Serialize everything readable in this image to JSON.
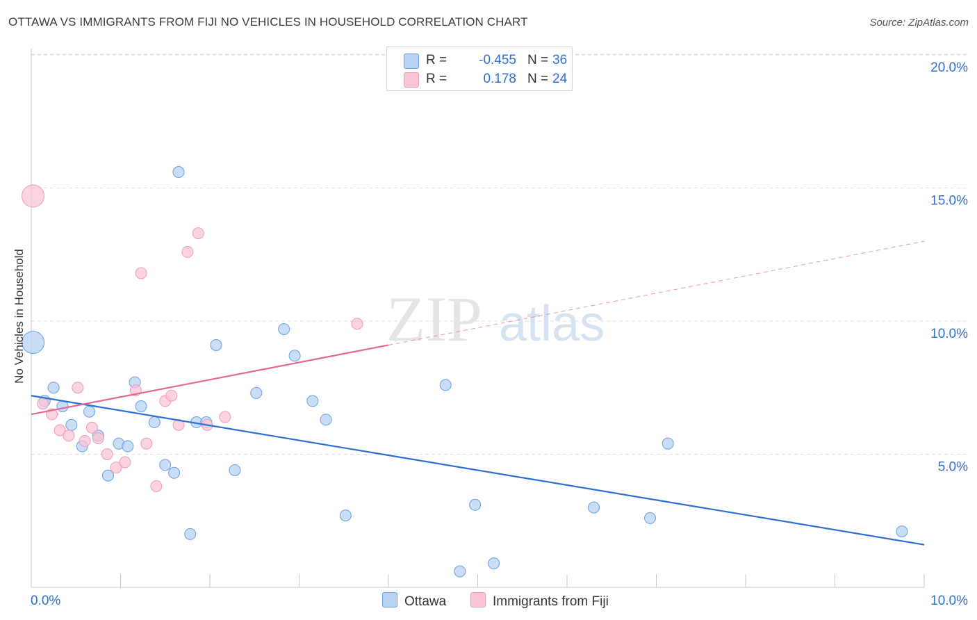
{
  "header": {
    "title": "OTTAWA VS IMMIGRANTS FROM FIJI NO VEHICLES IN HOUSEHOLD CORRELATION CHART",
    "source": "Source: ZipAtlas.com"
  },
  "watermark": {
    "zip": "ZIP",
    "atlas": "atlas"
  },
  "legend": {
    "rows": [
      {
        "r_label": "R =",
        "r_value": "-0.455",
        "n_label": "N =",
        "n_value": "36"
      },
      {
        "r_label": "R =",
        "r_value": "0.178",
        "n_label": "N =",
        "n_value": "24"
      }
    ],
    "bottom": [
      "Ottawa",
      "Immigrants from Fiji"
    ]
  },
  "colors": {
    "ottawa_fill": "#b8d2f3",
    "ottawa_stroke": "#6b9ee0",
    "ottawa_line": "#2b6fd3",
    "fiji_fill": "#f9c6d6",
    "fiji_stroke": "#ee9ab6",
    "fiji_line": "#e5678f",
    "tick_text": "#2f6fcd",
    "grid": "#dedede"
  },
  "chart_data": {
    "type": "scatter",
    "title": "OTTAWA VS IMMIGRANTS FROM FIJI NO VEHICLES IN HOUSEHOLD CORRELATION CHART",
    "xlabel": "",
    "ylabel": "No Vehicles in Household",
    "xlim": [
      0,
      10
    ],
    "ylim": [
      0,
      20.5
    ],
    "x_tick_labels": [
      "0.0%",
      "10.0%"
    ],
    "y_ticks": [
      5,
      10,
      15,
      20
    ],
    "y_tick_labels": [
      "5.0%",
      "10.0%",
      "15.0%",
      "20.0%"
    ],
    "grid": true,
    "legend_position": "top-center",
    "series": [
      {
        "name": "Ottawa",
        "r": -0.455,
        "n": 36,
        "trend": {
          "x0": 0.0,
          "y0": 7.2,
          "x1": 10.0,
          "y1": 1.6,
          "solid_to": 10.0
        },
        "points": [
          {
            "x": 0.02,
            "y": 9.2,
            "big": true
          },
          {
            "x": 0.15,
            "y": 7.0
          },
          {
            "x": 0.25,
            "y": 7.5
          },
          {
            "x": 0.35,
            "y": 6.8
          },
          {
            "x": 0.45,
            "y": 6.1
          },
          {
            "x": 0.57,
            "y": 5.3
          },
          {
            "x": 0.65,
            "y": 6.6
          },
          {
            "x": 0.75,
            "y": 5.7
          },
          {
            "x": 0.86,
            "y": 4.2
          },
          {
            "x": 0.98,
            "y": 5.4
          },
          {
            "x": 1.08,
            "y": 5.3
          },
          {
            "x": 1.16,
            "y": 7.7
          },
          {
            "x": 1.23,
            "y": 6.8
          },
          {
            "x": 1.38,
            "y": 6.2
          },
          {
            "x": 1.5,
            "y": 4.6
          },
          {
            "x": 1.6,
            "y": 4.3
          },
          {
            "x": 1.65,
            "y": 15.6
          },
          {
            "x": 1.78,
            "y": 2.0
          },
          {
            "x": 1.85,
            "y": 6.2
          },
          {
            "x": 1.96,
            "y": 6.2
          },
          {
            "x": 2.07,
            "y": 9.1
          },
          {
            "x": 2.28,
            "y": 4.4
          },
          {
            "x": 2.52,
            "y": 7.3
          },
          {
            "x": 2.83,
            "y": 9.7
          },
          {
            "x": 2.95,
            "y": 8.7
          },
          {
            "x": 3.15,
            "y": 7.0
          },
          {
            "x": 3.3,
            "y": 6.3
          },
          {
            "x": 3.52,
            "y": 2.7
          },
          {
            "x": 4.64,
            "y": 7.6
          },
          {
            "x": 4.8,
            "y": 0.6
          },
          {
            "x": 4.97,
            "y": 3.1
          },
          {
            "x": 5.18,
            "y": 0.9
          },
          {
            "x": 6.3,
            "y": 3.0
          },
          {
            "x": 6.93,
            "y": 2.6
          },
          {
            "x": 7.13,
            "y": 5.4
          },
          {
            "x": 9.75,
            "y": 2.1
          }
        ]
      },
      {
        "name": "Immigrants from Fiji",
        "r": 0.178,
        "n": 24,
        "trend": {
          "x0": 0.0,
          "y0": 6.5,
          "x1": 10.0,
          "y1": 13.0,
          "solid_to": 4.0
        },
        "points": [
          {
            "x": 0.02,
            "y": 14.7,
            "big": true
          },
          {
            "x": 0.13,
            "y": 6.9
          },
          {
            "x": 0.23,
            "y": 6.5
          },
          {
            "x": 0.32,
            "y": 5.9
          },
          {
            "x": 0.42,
            "y": 5.7
          },
          {
            "x": 0.52,
            "y": 7.5
          },
          {
            "x": 0.6,
            "y": 5.5
          },
          {
            "x": 0.68,
            "y": 6.0
          },
          {
            "x": 0.75,
            "y": 5.6
          },
          {
            "x": 0.85,
            "y": 5.0
          },
          {
            "x": 0.95,
            "y": 4.5
          },
          {
            "x": 1.05,
            "y": 4.7
          },
          {
            "x": 1.17,
            "y": 7.4
          },
          {
            "x": 1.23,
            "y": 11.8
          },
          {
            "x": 1.29,
            "y": 5.4
          },
          {
            "x": 1.4,
            "y": 3.8
          },
          {
            "x": 1.5,
            "y": 7.0
          },
          {
            "x": 1.57,
            "y": 7.2
          },
          {
            "x": 1.65,
            "y": 6.1
          },
          {
            "x": 1.75,
            "y": 12.6
          },
          {
            "x": 1.87,
            "y": 13.3
          },
          {
            "x": 1.97,
            "y": 6.1
          },
          {
            "x": 2.17,
            "y": 6.4
          },
          {
            "x": 3.65,
            "y": 9.9
          }
        ]
      }
    ]
  }
}
